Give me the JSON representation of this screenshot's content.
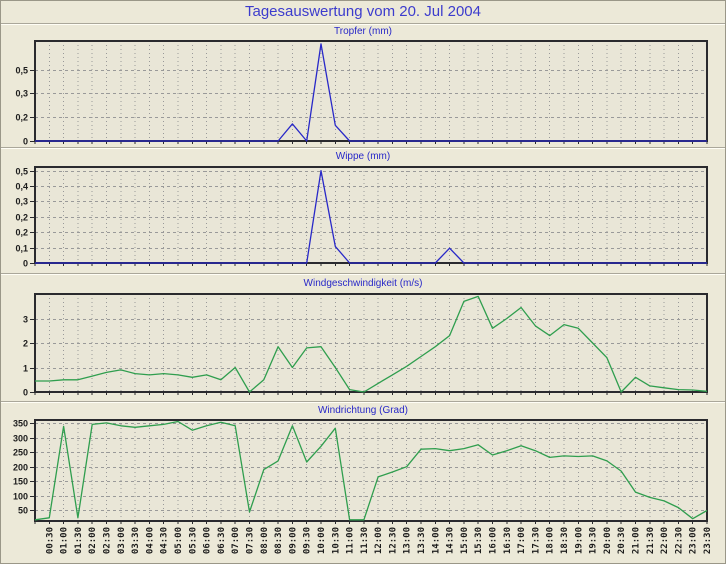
{
  "page": {
    "title": "Tagesauswertung vom 20. Jul 2004",
    "background": "#ece9d8",
    "plot_background": "#e9e6d7",
    "grid_color": "#999999",
    "border_color": "#2a2a2e",
    "title_color": "#3c3ccd",
    "tick_text_color": "#1c1c1c"
  },
  "x_axis": {
    "tick_labels": [
      "00:30",
      "01:00",
      "01:30",
      "02:00",
      "02:30",
      "03:00",
      "03:30",
      "04:00",
      "04:30",
      "05:00",
      "05:30",
      "06:00",
      "06:30",
      "07:00",
      "07:30",
      "08:00",
      "08:30",
      "09:00",
      "09:30",
      "10:00",
      "10:30",
      "11:00",
      "11:30",
      "12:00",
      "12:30",
      "13:00",
      "13:30",
      "14:00",
      "14:30",
      "15:00",
      "15:30",
      "16:00",
      "16:30",
      "17:00",
      "17:30",
      "18:00",
      "18:30",
      "19:00",
      "19:30",
      "20:00",
      "20:30",
      "21:00",
      "21:30",
      "22:00",
      "22:30",
      "23:00",
      "23:30"
    ]
  },
  "chart_data": [
    {
      "type": "line",
      "title": "Tropfer (mm)",
      "line_color": "#2828c8",
      "ylim": [
        0,
        0.7
      ],
      "yticks": [
        {
          "value": 0.5,
          "label": "0,5"
        },
        {
          "value": 0.3333,
          "label": "0,3"
        },
        {
          "value": 0.1667,
          "label": "0,2"
        },
        {
          "value": 0,
          "label": "0"
        }
      ],
      "values": [
        0,
        0,
        0,
        0,
        0,
        0,
        0,
        0,
        0,
        0,
        0,
        0,
        0,
        0,
        0,
        0,
        0,
        0,
        0.12,
        0,
        0.68,
        0.11,
        0,
        0,
        0,
        0,
        0,
        0,
        0,
        0,
        0,
        0,
        0,
        0,
        0,
        0,
        0,
        0,
        0,
        0,
        0,
        0,
        0,
        0,
        0,
        0,
        0,
        0
      ]
    },
    {
      "type": "line",
      "title": "Wippe (mm)",
      "line_color": "#2828c8",
      "ylim": [
        0,
        0.52
      ],
      "yticks": [
        {
          "value": 0.5,
          "label": "0,5"
        },
        {
          "value": 0.4167,
          "label": "0,4"
        },
        {
          "value": 0.3333,
          "label": "0,3"
        },
        {
          "value": 0.25,
          "label": "0,2"
        },
        {
          "value": 0.1667,
          "label": "0,2"
        },
        {
          "value": 0.0833,
          "label": "0,1"
        },
        {
          "value": 0,
          "label": "0"
        }
      ],
      "values": [
        0,
        0,
        0,
        0,
        0,
        0,
        0,
        0,
        0,
        0,
        0,
        0,
        0,
        0,
        0,
        0,
        0,
        0,
        0,
        0,
        0.5,
        0.09,
        0,
        0,
        0,
        0,
        0,
        0,
        0,
        0.08,
        0,
        0,
        0,
        0,
        0,
        0,
        0,
        0,
        0,
        0,
        0,
        0,
        0,
        0,
        0,
        0,
        0,
        0
      ]
    },
    {
      "type": "line",
      "title": "Windgeschwindigkeit (m/s)",
      "line_color": "#2f9e4e",
      "ylim": [
        0,
        4
      ],
      "yticks": [
        {
          "value": 3,
          "label": "3"
        },
        {
          "value": 2,
          "label": "2"
        },
        {
          "value": 1,
          "label": "1"
        },
        {
          "value": 0,
          "label": "0"
        }
      ],
      "values": [
        0.45,
        0.45,
        0.5,
        0.5,
        0.65,
        0.8,
        0.9,
        0.75,
        0.7,
        0.75,
        0.7,
        0.6,
        0.7,
        0.5,
        1.0,
        0.0,
        0.5,
        1.85,
        1.0,
        1.8,
        1.85,
        1.0,
        0.1,
        0.0,
        0.35,
        0.7,
        1.05,
        1.45,
        1.85,
        2.3,
        3.7,
        3.9,
        2.6,
        3.0,
        3.45,
        2.7,
        2.3,
        2.75,
        2.6,
        2.0,
        1.4,
        0.0,
        0.6,
        0.25,
        0.17,
        0.1,
        0.08,
        0.03
      ]
    },
    {
      "type": "line",
      "title": "Windrichtung (Grad)",
      "line_color": "#2f9e4e",
      "ylim": [
        14,
        360
      ],
      "yticks": [
        {
          "value": 350,
          "label": "350"
        },
        {
          "value": 300,
          "label": "300"
        },
        {
          "value": 250,
          "label": "250"
        },
        {
          "value": 200,
          "label": "200"
        },
        {
          "value": 150,
          "label": "150"
        },
        {
          "value": 100,
          "label": "100"
        },
        {
          "value": 50,
          "label": "50"
        }
      ],
      "values": [
        18,
        25,
        338,
        25,
        345,
        350,
        340,
        335,
        340,
        345,
        355,
        325,
        340,
        352,
        340,
        45,
        190,
        220,
        340,
        216,
        270,
        332,
        18,
        18,
        165,
        182,
        200,
        260,
        262,
        255,
        262,
        275,
        240,
        255,
        272,
        255,
        232,
        237,
        235,
        237,
        220,
        185,
        113,
        95,
        83,
        60,
        22,
        50
      ]
    }
  ]
}
